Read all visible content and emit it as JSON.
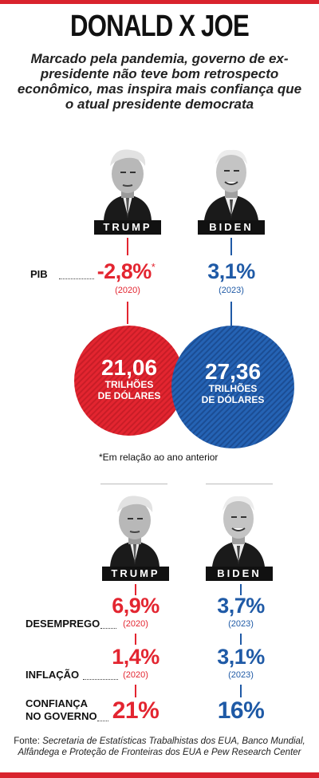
{
  "header": {
    "title": "DONALD X JOE",
    "subtitle": "Marcado pela pandemia, governo de ex-presidente não teve bom retrospecto econômico, mas inspira mais confiança que o atual presidente democrata"
  },
  "colors": {
    "trump_red": "#e32530",
    "biden_blue": "#1f5aa6",
    "band": "#d9232d"
  },
  "names": {
    "trump": "TRUMP",
    "biden": "BIDEN"
  },
  "pib": {
    "label": "PIB",
    "trump_value": "-2,8%",
    "trump_marker": "*",
    "trump_year": "(2020)",
    "biden_value": "3,1%",
    "biden_year": "(2023)"
  },
  "gdp": {
    "trump_value": "21,06",
    "biden_value": "27,36",
    "unit_line1": "TRILHÕES",
    "unit_line2": "DE DÓLARES"
  },
  "footnote": "*Em relação ao ano anterior",
  "stats": {
    "desemprego": {
      "label": "DESEMPREGO",
      "trump_value": "6,9%",
      "trump_year": "(2020)",
      "biden_value": "3,7%",
      "biden_year": "(2023)"
    },
    "inflacao": {
      "label": "INFLAÇÃO",
      "trump_value": "1,4%",
      "trump_year": "(2020)",
      "biden_value": "3,1%",
      "biden_year": "(2023)"
    },
    "confianca": {
      "label_line1": "CONFIANÇA",
      "label_line2": "NO GOVERNO",
      "trump_value": "21%",
      "biden_value": "16%"
    }
  },
  "source": {
    "prefix": "Fonte:",
    "text": "Secretaria de Estatísticas Trabalhistas dos EUA, Banco Mundial, Alfândega e Proteção de Fronteiras dos EUA e Pew Research Center"
  }
}
